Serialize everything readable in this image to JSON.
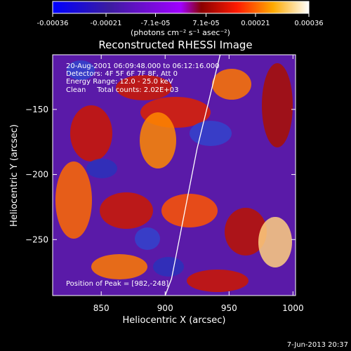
{
  "colorbar": {
    "tick_labels": [
      "-0.00036",
      "-0.00021",
      "-7.1e-05",
      "7.1e-05",
      "0.00021",
      "0.00036"
    ],
    "unit_label": "(photons cm⁻² s⁻¹ asec⁻²)"
  },
  "chart_data": {
    "type": "heatmap",
    "title": "Reconstructed RHESSI Image",
    "xlabel": "Heliocentric X (arcsec)",
    "ylabel": "Heliocentric Y (arcsec)",
    "xlim": [
      812,
      1002
    ],
    "ylim": [
      -293,
      -108
    ],
    "x_ticks": [
      850,
      900,
      950,
      1000
    ],
    "x_tick_labels": [
      "850",
      "900",
      "950",
      "1000"
    ],
    "y_ticks": [
      -150,
      -200,
      -250
    ],
    "y_tick_labels": [
      "−150",
      "−200",
      "−250"
    ],
    "colormap_range": [
      -0.00036,
      0.00036
    ],
    "annotations": [
      "20-Aug-2001 06:09:48.000 to 06:12:16.000",
      "Detectors: 4F 5F 6F 7F 8F, Att 0",
      "Energy Range: 12.0 - 25.0 keV",
      "Clean     Total counts: 2.02E+03"
    ],
    "peak_label": "Position of Peak = [982,-248]",
    "peak_position": [
      982,
      -248
    ],
    "limb_curve": {
      "x": [
        943,
        935,
        925,
        915,
        905,
        900
      ],
      "y": [
        -108,
        -140,
        -180,
        -230,
        -280,
        -293
      ]
    }
  },
  "footer": {
    "timestamp": "7-Jun-2013 20:37"
  }
}
